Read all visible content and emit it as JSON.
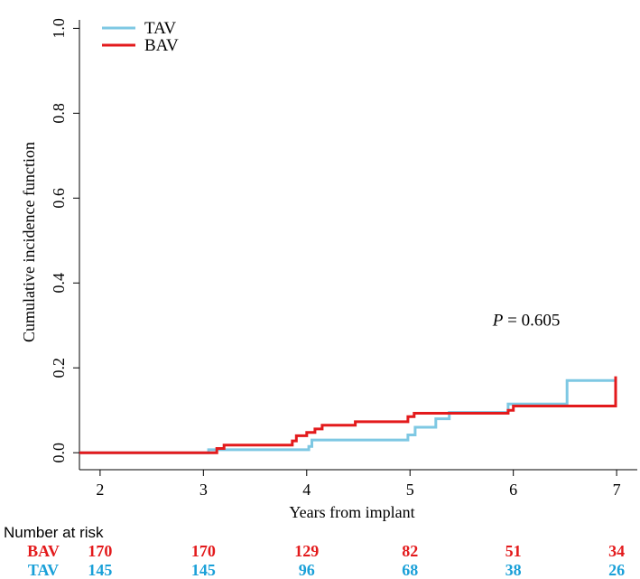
{
  "chart_data": {
    "type": "line",
    "title": "",
    "xlabel": "Years from implant",
    "ylabel": "Cumulative incidence function",
    "xlim": [
      1.8,
      7.2
    ],
    "ylim": [
      -0.04,
      1.02
    ],
    "x_ticks": [
      2,
      3,
      4,
      5,
      6,
      7
    ],
    "x_tick_labels": [
      "2",
      "3",
      "4",
      "5",
      "6",
      "7"
    ],
    "y_ticks": [
      0.0,
      0.2,
      0.4,
      0.6,
      0.8,
      1.0
    ],
    "y_tick_labels": [
      "0.0",
      "0.2",
      "0.4",
      "0.6",
      "0.8",
      "1.0"
    ],
    "legend_position": "top-left",
    "annotation": {
      "label": "P",
      "text": " = 0.605",
      "x": 5.8,
      "y": 0.3
    },
    "series": [
      {
        "name": "TAV",
        "color": "#7ec8e3",
        "steps": [
          [
            1.8,
            0.0
          ],
          [
            3.05,
            0.007
          ],
          [
            4.02,
            0.015
          ],
          [
            4.05,
            0.03
          ],
          [
            4.98,
            0.042
          ],
          [
            5.05,
            0.06
          ],
          [
            5.25,
            0.08
          ],
          [
            5.38,
            0.095
          ],
          [
            5.95,
            0.115
          ],
          [
            6.52,
            0.17
          ],
          [
            7.0,
            0.17
          ]
        ]
      },
      {
        "name": "BAV",
        "color": "#e31a1c",
        "steps": [
          [
            1.8,
            0.0
          ],
          [
            3.13,
            0.01
          ],
          [
            3.2,
            0.018
          ],
          [
            3.86,
            0.028
          ],
          [
            3.9,
            0.04
          ],
          [
            4.0,
            0.048
          ],
          [
            4.08,
            0.056
          ],
          [
            4.15,
            0.065
          ],
          [
            4.47,
            0.073
          ],
          [
            4.98,
            0.085
          ],
          [
            5.04,
            0.093
          ],
          [
            5.95,
            0.1
          ],
          [
            6.0,
            0.11
          ],
          [
            6.98,
            0.11
          ],
          [
            6.99,
            0.18
          ]
        ]
      }
    ],
    "risk_table": {
      "header": "Number at risk",
      "times": [
        2,
        3,
        4,
        5,
        6,
        7
      ],
      "rows": [
        {
          "name": "BAV",
          "color": "#e31a1c",
          "values": [
            "170",
            "170",
            "129",
            "82",
            "51",
            "34"
          ]
        },
        {
          "name": "TAV",
          "color": "#1aa0d8",
          "values": [
            "145",
            "145",
            "96",
            "68",
            "38",
            "26"
          ]
        }
      ]
    }
  }
}
